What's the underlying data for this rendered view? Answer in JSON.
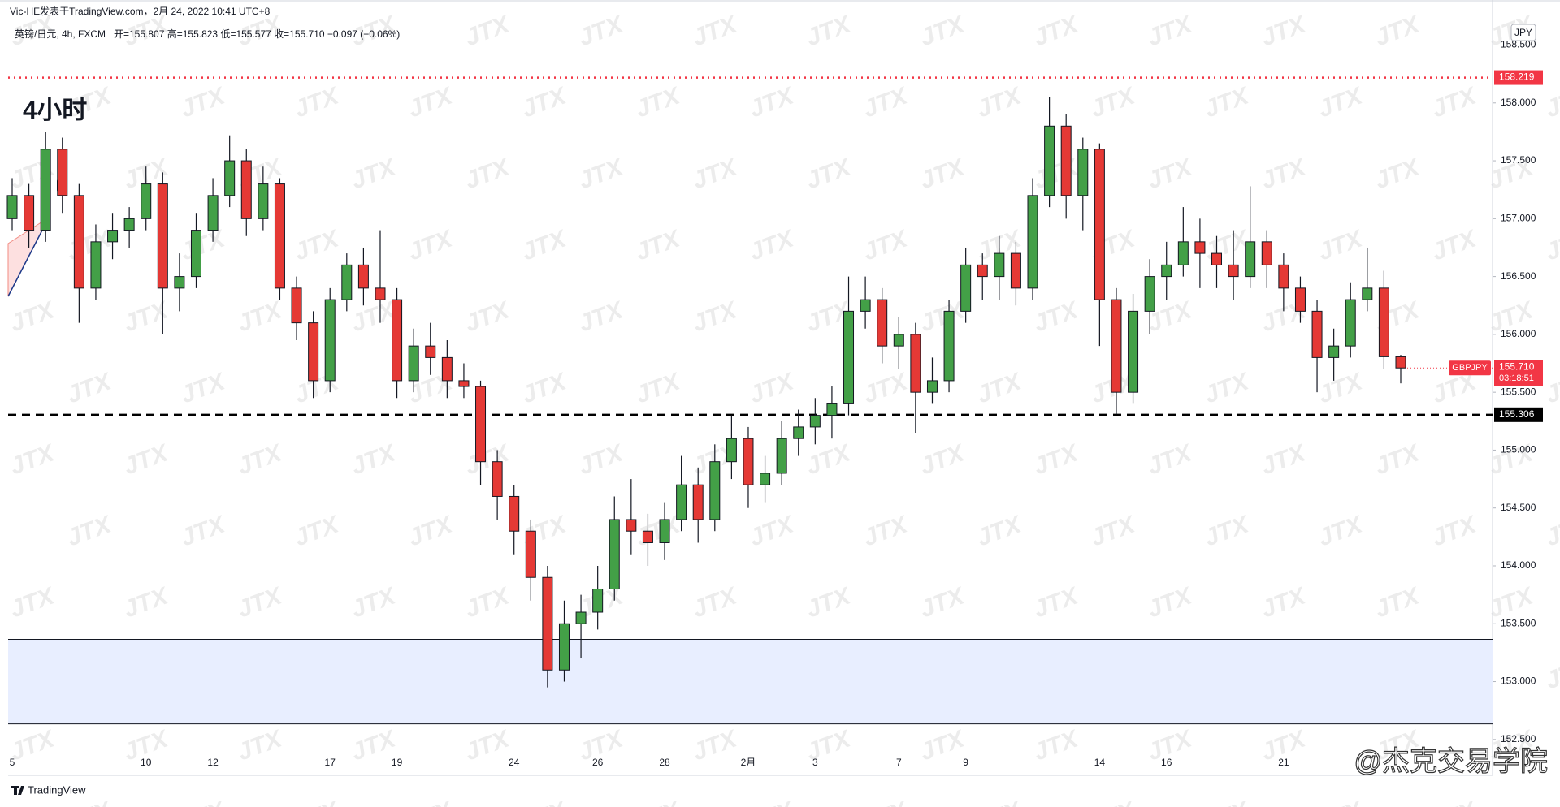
{
  "chart_data": {
    "type": "candlestick",
    "author_line": "Vic-HE发表于TradingView.com，2月 24, 2022 10:41 UTC+8",
    "symbol_line": "英镑/日元, 4h, FXCM",
    "ohlc_line": "开=155.807 高=155.823 低=155.577 收=155.710 −0.097 (−0.06%)",
    "title": "4小时",
    "currency": "JPY",
    "brand": "TradingView",
    "watermark": "JTX",
    "signature": "@杰克交易学院",
    "categories": [
      "5",
      null,
      null,
      null,
      null,
      null,
      null,
      null,
      "10",
      null,
      null,
      null,
      "12",
      null,
      null,
      null,
      null,
      null,
      null,
      "17",
      null,
      null,
      null,
      "19",
      null,
      null,
      null,
      null,
      null,
      null,
      "24",
      null,
      null,
      null,
      null,
      "26",
      null,
      null,
      null,
      "28",
      null,
      null,
      null,
      null,
      "2月",
      null,
      null,
      null,
      "3",
      null,
      null,
      null,
      null,
      "7",
      null,
      null,
      null,
      "9",
      null,
      null,
      null,
      null,
      null,
      null,
      null,
      "14",
      null,
      null,
      null,
      "16",
      null,
      null,
      null,
      null,
      null,
      null,
      "21",
      null,
      null,
      null,
      null,
      null,
      null,
      null
    ],
    "open": [
      157.0,
      157.2,
      156.9,
      157.6,
      157.2,
      156.4,
      156.8,
      156.9,
      157.0,
      157.3,
      156.4,
      156.5,
      156.9,
      157.2,
      157.5,
      157.0,
      157.3,
      156.4,
      156.1,
      155.6,
      156.3,
      156.6,
      156.4,
      156.3,
      155.6,
      155.9,
      155.8,
      155.6,
      155.55,
      154.9,
      154.6,
      154.3,
      153.9,
      153.1,
      153.5,
      153.6,
      153.8,
      154.4,
      154.3,
      154.2,
      154.4,
      154.7,
      154.4,
      154.9,
      155.1,
      154.7,
      154.8,
      155.1,
      155.2,
      155.3,
      155.4,
      156.2,
      156.3,
      155.9,
      156.0,
      155.5,
      155.6,
      156.2,
      156.6,
      156.5,
      156.7,
      156.4,
      157.2,
      157.8,
      157.2,
      157.6,
      156.3,
      155.5,
      156.2,
      156.5,
      156.6,
      156.8,
      156.7,
      156.6,
      156.5,
      156.8,
      156.6,
      156.4,
      156.2,
      155.8,
      155.9,
      156.3,
      156.4,
      155.807
    ],
    "high": [
      157.35,
      157.3,
      157.75,
      157.7,
      157.3,
      156.95,
      157.05,
      157.1,
      157.45,
      157.4,
      156.7,
      157.05,
      157.35,
      157.72,
      157.6,
      157.45,
      157.35,
      156.5,
      156.2,
      156.4,
      156.7,
      156.75,
      156.9,
      156.4,
      156.05,
      156.1,
      155.95,
      155.75,
      155.6,
      155.0,
      154.7,
      154.4,
      154.0,
      153.7,
      153.75,
      154.0,
      154.6,
      154.75,
      154.45,
      154.55,
      154.95,
      154.85,
      155.05,
      155.3,
      155.2,
      154.95,
      155.25,
      155.35,
      155.45,
      155.55,
      156.5,
      156.5,
      156.4,
      156.15,
      156.1,
      155.8,
      156.3,
      156.75,
      156.7,
      156.85,
      156.8,
      157.35,
      158.05,
      157.9,
      157.7,
      157.65,
      156.4,
      156.35,
      156.65,
      156.8,
      157.1,
      157.0,
      156.85,
      156.9,
      157.28,
      156.9,
      156.7,
      156.5,
      156.3,
      156.05,
      156.45,
      156.75,
      156.55,
      155.823
    ],
    "low": [
      156.9,
      156.75,
      156.8,
      157.05,
      156.1,
      156.3,
      156.65,
      156.75,
      156.9,
      156.0,
      156.2,
      156.4,
      156.8,
      157.1,
      156.85,
      156.9,
      156.3,
      155.95,
      155.45,
      155.5,
      156.2,
      156.25,
      156.1,
      155.45,
      155.5,
      155.65,
      155.45,
      155.45,
      154.7,
      154.4,
      154.1,
      153.7,
      152.95,
      153.0,
      153.2,
      153.45,
      153.7,
      154.1,
      154.0,
      154.05,
      154.3,
      154.2,
      154.3,
      154.75,
      154.5,
      154.55,
      154.7,
      154.95,
      155.05,
      155.1,
      155.3,
      156.05,
      155.75,
      155.7,
      155.15,
      155.4,
      155.5,
      156.1,
      156.3,
      156.3,
      156.25,
      156.3,
      157.1,
      157.0,
      156.9,
      155.9,
      155.31,
      155.4,
      156.0,
      156.3,
      156.5,
      156.4,
      156.4,
      156.3,
      156.4,
      156.4,
      156.2,
      156.1,
      155.5,
      155.6,
      155.8,
      156.2,
      155.7,
      155.577
    ],
    "close": [
      157.2,
      156.9,
      157.6,
      157.2,
      156.4,
      156.8,
      156.9,
      157.0,
      157.3,
      156.4,
      156.5,
      156.9,
      157.2,
      157.5,
      157.0,
      157.3,
      156.4,
      156.1,
      155.6,
      156.3,
      156.6,
      156.4,
      156.3,
      155.6,
      155.9,
      155.8,
      155.6,
      155.55,
      154.9,
      154.6,
      154.3,
      153.9,
      153.1,
      153.5,
      153.6,
      153.8,
      154.4,
      154.3,
      154.2,
      154.4,
      154.7,
      154.4,
      154.9,
      155.1,
      154.7,
      154.8,
      155.1,
      155.2,
      155.3,
      155.4,
      156.2,
      156.3,
      155.9,
      156.0,
      155.5,
      155.6,
      156.2,
      156.6,
      156.5,
      156.7,
      156.4,
      157.2,
      157.8,
      157.2,
      157.6,
      156.3,
      155.5,
      156.2,
      156.5,
      156.6,
      156.8,
      156.7,
      156.6,
      156.5,
      156.8,
      156.6,
      156.4,
      156.2,
      155.8,
      155.9,
      156.3,
      156.4,
      155.807,
      155.71
    ],
    "up_color": "#43a047",
    "down_color": "#e53935",
    "ylim": [
      152.19,
      158.7
    ],
    "yticks": [
      {
        "value": 152.5,
        "label": "152.500"
      },
      {
        "value": 153,
        "label": "153.000"
      },
      {
        "value": 153.5,
        "label": "153.500"
      },
      {
        "value": 154,
        "label": "154.000"
      },
      {
        "value": 154.5,
        "label": "154.500"
      },
      {
        "value": 155,
        "label": "155.000"
      },
      {
        "value": 155.5,
        "label": "155.500"
      },
      {
        "value": 156,
        "label": "156.000"
      },
      {
        "value": 156.5,
        "label": "156.500"
      },
      {
        "value": 157,
        "label": "157.000"
      },
      {
        "value": 157.5,
        "label": "157.500"
      },
      {
        "value": 158,
        "label": "158.000"
      },
      {
        "value": 158.5,
        "label": "158.500"
      }
    ],
    "grid": false,
    "levels": [
      {
        "value": 158.219,
        "label": "158.219",
        "color": "#f23645",
        "style": "dotted"
      },
      {
        "value": 155.306,
        "label": "155.306",
        "color": "#000000",
        "style": "dashed"
      }
    ],
    "zone": {
      "top": 153.365,
      "bottom": 152.635,
      "color": "#e8eeff"
    },
    "last": {
      "value": 155.71,
      "label": "155.710",
      "symbol": "GBPJPY",
      "countdown": "03:18:51",
      "color": "#f23645"
    }
  }
}
